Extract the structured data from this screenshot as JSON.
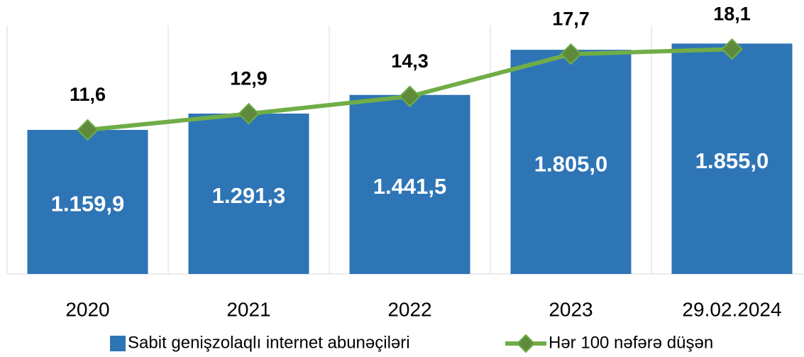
{
  "chart_data": {
    "type": "bar+line",
    "categories": [
      "2020",
      "2021",
      "2022",
      "2023",
      "29.02.2024"
    ],
    "series": [
      {
        "name": "Sabit genişzolaqlı internet abunəçiləri",
        "type": "bar",
        "color": "#2e75b6",
        "values": [
          1159.9,
          1291.3,
          1441.5,
          1805.0,
          1855.0
        ],
        "value_labels": [
          "1.159,9",
          "1.291,3",
          "1.441,5",
          "1.805,0",
          "1.855,0"
        ]
      },
      {
        "name": "Hər 100 nəfərə düşən",
        "type": "line",
        "axis": "y2",
        "color": "#70ad47",
        "marker_color": "#5f8a3b",
        "values": [
          11.6,
          12.9,
          14.3,
          17.7,
          18.1
        ],
        "value_labels": [
          "11,6",
          "12,9",
          "14,3",
          "17,7",
          "18,1"
        ]
      }
    ],
    "ylim": [
      0,
      2000
    ],
    "y2lim": [
      0,
      20
    ],
    "grid": true,
    "legend": "bottom"
  }
}
